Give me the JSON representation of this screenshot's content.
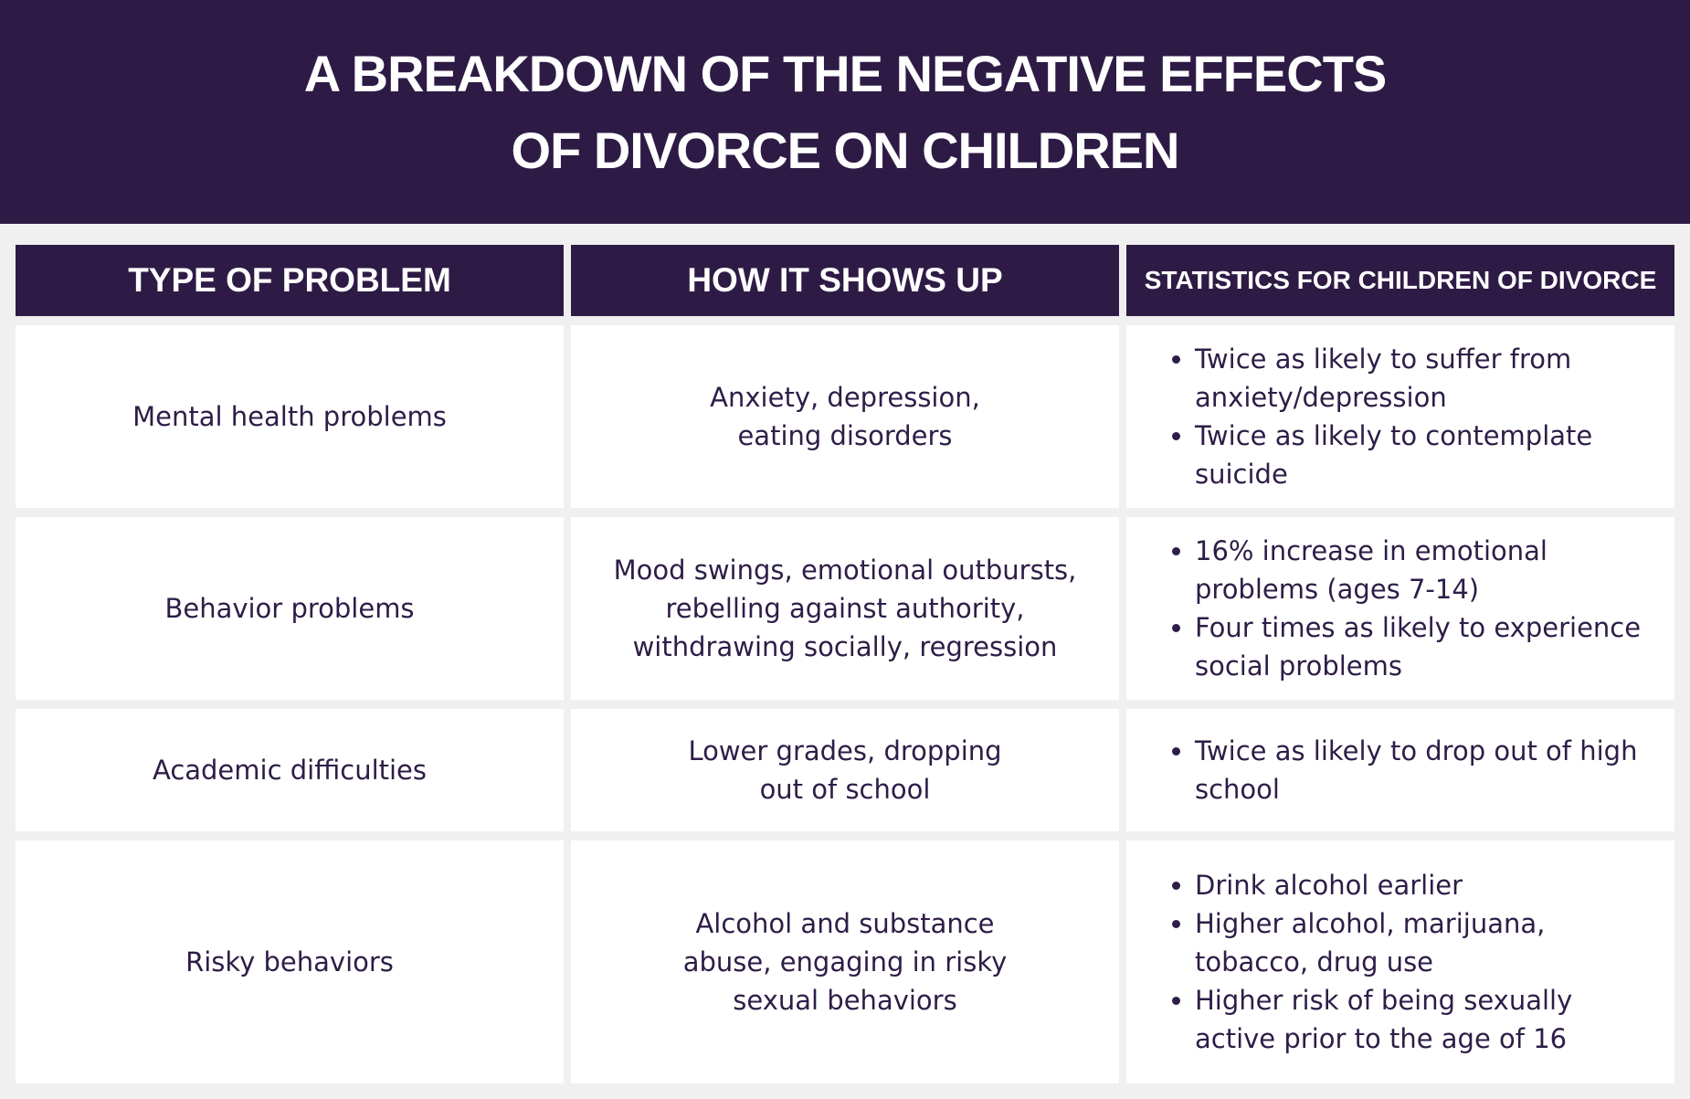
{
  "header": {
    "title_lines": [
      "A BREAKDOWN OF THE NEGATIVE EFFECTS",
      "OF DIVORCE ON CHILDREN"
    ]
  },
  "table": {
    "columns": [
      "TYPE OF PROBLEM",
      "HOW IT SHOWS UP",
      "STATISTICS FOR CHILDREN OF DIVORCE"
    ],
    "rows": [
      {
        "problem": "Mental health problems",
        "shows_up": [
          "Anxiety, depression,",
          "eating disorders"
        ],
        "statistics": [
          "Twice as likely to suffer from anxiety/depression",
          "Twice as likely to contemplate suicide"
        ]
      },
      {
        "problem": "Behavior problems",
        "shows_up": [
          "Mood swings, emotional outbursts,",
          "rebelling against authority,",
          "withdrawing socially, regression"
        ],
        "statistics": [
          "16% increase in emotional problems (ages 7-14)",
          "Four times as likely to experience social problems"
        ]
      },
      {
        "problem": "Academic difficulties",
        "shows_up": [
          "Lower grades, dropping",
          "out of school"
        ],
        "statistics": [
          "Twice as likely to drop out of high school"
        ]
      },
      {
        "problem": "Risky behaviors",
        "shows_up": [
          "Alcohol and substance",
          "abuse, engaging in risky",
          "sexual behaviors"
        ],
        "statistics": [
          "Drink alcohol earlier",
          "Higher alcohol, marijuana, tobacco, drug use",
          "Higher risk of being sexually active prior to the age of 16"
        ]
      }
    ]
  }
}
